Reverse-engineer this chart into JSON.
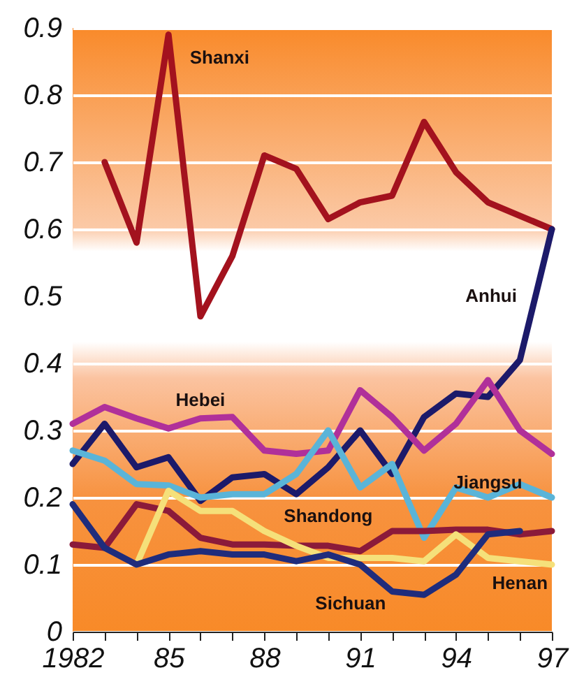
{
  "chart_data": {
    "type": "line",
    "x": [
      1982,
      1983,
      1984,
      1985,
      1986,
      1987,
      1988,
      1989,
      1990,
      1991,
      1992,
      1993,
      1994,
      1995,
      1996,
      1997
    ],
    "xlim": [
      1982,
      1997
    ],
    "xticks": [
      {
        "value": 1982,
        "label": "1982"
      },
      {
        "value": 1983,
        "label": null
      },
      {
        "value": 1984,
        "label": null
      },
      {
        "value": 1985,
        "label": "85"
      },
      {
        "value": 1986,
        "label": null
      },
      {
        "value": 1987,
        "label": null
      },
      {
        "value": 1988,
        "label": "88"
      },
      {
        "value": 1989,
        "label": null
      },
      {
        "value": 1990,
        "label": null
      },
      {
        "value": 1991,
        "label": "91"
      },
      {
        "value": 1992,
        "label": null
      },
      {
        "value": 1993,
        "label": null
      },
      {
        "value": 1994,
        "label": "94"
      },
      {
        "value": 1995,
        "label": null
      },
      {
        "value": 1996,
        "label": null
      },
      {
        "value": 1997,
        "label": "97"
      }
    ],
    "ylim": [
      0,
      0.9
    ],
    "yticks": [
      0,
      0.1,
      0.2,
      0.3,
      0.4,
      0.5,
      0.6,
      0.7,
      0.8,
      0.9
    ],
    "grid": "y",
    "series": [
      {
        "name": "Shanxi",
        "color": "#a3121e",
        "values": [
          null,
          0.7,
          0.58,
          0.89,
          0.47,
          0.56,
          0.71,
          0.69,
          0.615,
          0.64,
          0.65,
          0.76,
          0.685,
          0.64,
          0.62,
          0.6
        ]
      },
      {
        "name": "Anhui",
        "color": "#1c1a6a",
        "values": [
          0.25,
          0.31,
          0.245,
          0.26,
          0.195,
          0.23,
          0.235,
          0.205,
          0.245,
          0.3,
          0.235,
          0.32,
          0.355,
          0.35,
          0.405,
          0.6
        ]
      },
      {
        "name": "Hebei",
        "color": "#b0309a",
        "values": [
          0.31,
          0.335,
          0.318,
          0.303,
          0.318,
          0.32,
          0.27,
          0.265,
          0.27,
          0.36,
          0.32,
          0.27,
          0.31,
          0.375,
          0.3,
          0.265
        ]
      },
      {
        "name": "Jiangsu",
        "color": "#5ab4d8",
        "values": [
          0.27,
          0.255,
          0.22,
          0.218,
          0.2,
          0.205,
          0.205,
          0.235,
          0.3,
          0.215,
          0.25,
          0.14,
          0.215,
          0.2,
          0.22,
          0.2
        ]
      },
      {
        "name": "Shandong",
        "color": "#8b1a3a",
        "values": [
          0.13,
          0.125,
          0.19,
          0.18,
          0.14,
          0.13,
          0.13,
          0.128,
          0.128,
          0.12,
          0.15,
          0.15,
          0.152,
          0.152,
          0.145,
          0.15
        ]
      },
      {
        "name": "Henan",
        "color": "#f5e07a",
        "values": [
          null,
          null,
          0.1,
          0.21,
          0.18,
          0.18,
          0.15,
          0.128,
          0.11,
          0.11,
          0.11,
          0.105,
          0.145,
          0.11,
          0.105,
          0.1
        ]
      },
      {
        "name": "Sichuan",
        "color": "#1f2c7c",
        "values": [
          0.19,
          0.125,
          0.1,
          0.115,
          0.12,
          0.115,
          0.115,
          0.105,
          0.115,
          0.1,
          0.06,
          0.055,
          0.085,
          0.145,
          0.15,
          null
        ]
      }
    ]
  }
}
